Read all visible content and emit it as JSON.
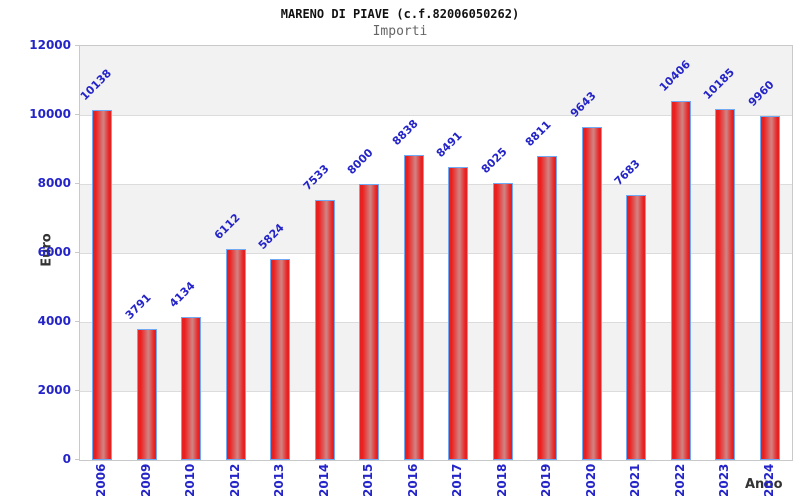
{
  "chart_data": {
    "type": "bar",
    "title": "MARENO DI PIAVE (c.f.82006050262)",
    "subtitle": "Importi",
    "xlabel": "Anno",
    "ylabel": "Euro",
    "categories": [
      "2006",
      "2009",
      "2010",
      "2012",
      "2013",
      "2014",
      "2015",
      "2016",
      "2017",
      "2018",
      "2019",
      "2020",
      "2021",
      "2022",
      "2023",
      "2024"
    ],
    "values": [
      10138,
      3791,
      4134,
      6112,
      5824,
      7533,
      8000,
      8838,
      8491,
      8025,
      8811,
      9643,
      7683,
      10406,
      10185,
      9960
    ],
    "bar_labels": [
      "10138",
      "3791",
      "4134",
      "6112",
      "5824",
      "7533",
      "8000",
      "8838",
      "8491",
      "8025",
      "8811",
      "9643",
      "7683",
      "10406",
      "10185",
      "9960"
    ],
    "ylim": [
      0,
      12000
    ],
    "yticks": [
      0,
      2000,
      4000,
      6000,
      8000,
      10000,
      12000
    ],
    "ytick_labels": [
      "0",
      "2000",
      "4000",
      "6000",
      "8000",
      "10000",
      "12000"
    ],
    "grid": true,
    "legend": false,
    "colors": {
      "bar_fill": "#ee2222",
      "bar_fill_mid": "#d08484",
      "bar_border": "#70a9f4",
      "tick_label": "#2424c8",
      "band_gray": "#f2f2f2",
      "gridline": "#dcdcdc",
      "plot_border": "#c9c9c9",
      "title": "#111111",
      "subtitle": "#666666",
      "axis_label": "#333333"
    }
  }
}
